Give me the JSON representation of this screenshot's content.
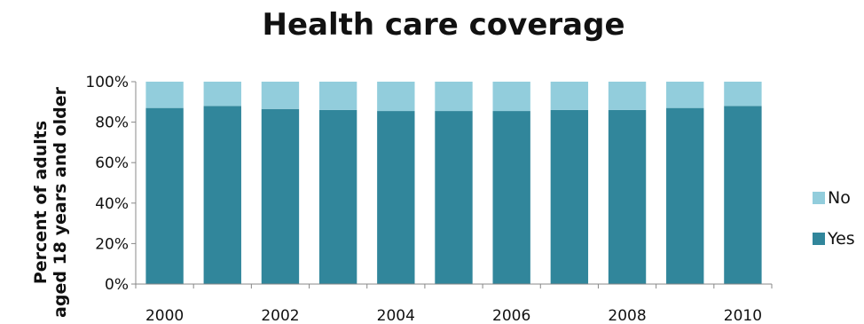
{
  "chart_data": {
    "type": "bar",
    "stacked": true,
    "percent_stacked": true,
    "title": "Health care coverage",
    "xlabel": "",
    "ylabel": [
      "Percent of adults",
      "aged 18 years and older"
    ],
    "categories": [
      "2000",
      "2001",
      "2002",
      "2003",
      "2004",
      "2005",
      "2006",
      "2007",
      "2008",
      "2009",
      "2010"
    ],
    "x_tick_labels": [
      "2000",
      "",
      "2002",
      "",
      "2004",
      "",
      "2006",
      "",
      "2008",
      "",
      "2010"
    ],
    "y_ticks": [
      0,
      20,
      40,
      60,
      80,
      100
    ],
    "y_tick_labels": [
      "0%",
      "20%",
      "40%",
      "60%",
      "80%",
      "100%"
    ],
    "ylim": [
      0,
      100
    ],
    "grid": false,
    "legend": "right",
    "series": [
      {
        "name": "Yes",
        "color": "#31869b",
        "values": [
          87,
          88,
          86.5,
          86,
          85.5,
          85.5,
          85.5,
          86,
          86,
          87,
          88
        ]
      },
      {
        "name": "No",
        "color": "#92cddc",
        "values": [
          13,
          12,
          13.5,
          14,
          14.5,
          14.5,
          14.5,
          14,
          14,
          13,
          12
        ]
      }
    ]
  }
}
